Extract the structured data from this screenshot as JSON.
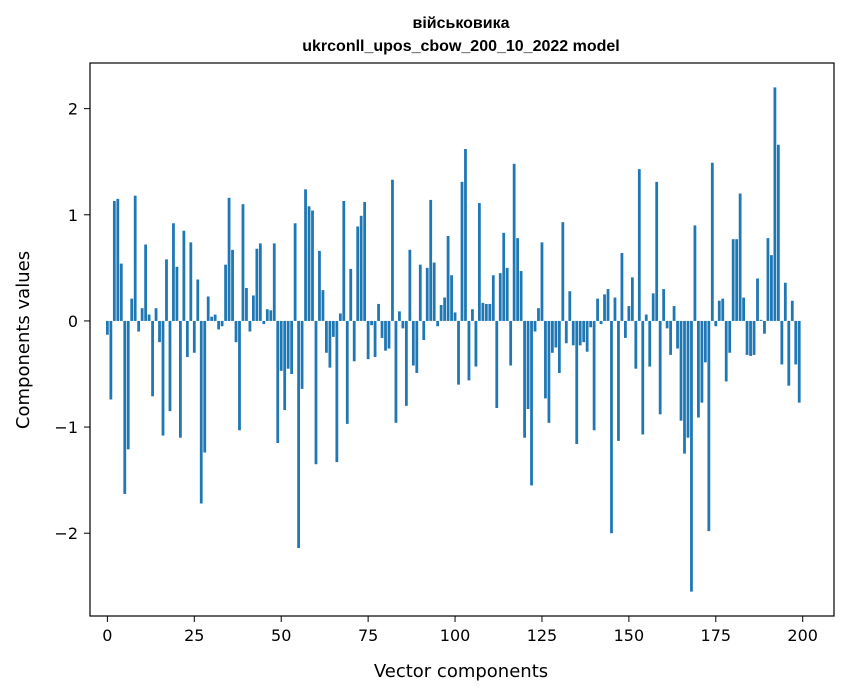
{
  "chart_data": {
    "type": "bar",
    "title": "військовика",
    "subtitle": "ukrconll_upos_cbow_200_10_2022 model",
    "xlabel": "Vector components",
    "ylabel": "Components values",
    "xlim": [
      -5,
      209
    ],
    "ylim": [
      -2.78,
      2.43
    ],
    "xticks": [
      0,
      25,
      50,
      75,
      100,
      125,
      150,
      175,
      200
    ],
    "yticks": [
      -2,
      -1,
      0,
      1,
      2
    ],
    "ytick_labels": [
      "−2",
      "−1",
      "0",
      "1",
      "2"
    ],
    "grid": false,
    "bar_color": "#1f77b4",
    "values": [
      -0.13,
      -0.74,
      1.13,
      1.15,
      0.54,
      -1.63,
      -1.21,
      0.21,
      1.18,
      -0.1,
      0.12,
      0.72,
      0.06,
      -0.71,
      0.12,
      -0.2,
      -1.08,
      0.58,
      -0.85,
      0.92,
      0.51,
      -1.1,
      0.85,
      -0.34,
      0.74,
      -0.3,
      0.39,
      -1.72,
      -1.24,
      0.23,
      0.04,
      0.06,
      -0.08,
      -0.05,
      0.53,
      1.16,
      0.67,
      -0.2,
      -1.03,
      1.1,
      0.31,
      -0.1,
      0.24,
      0.68,
      0.73,
      -0.03,
      0.11,
      0.1,
      0.73,
      -1.15,
      -0.47,
      -0.84,
      -0.45,
      -0.5,
      0.92,
      -2.14,
      -0.64,
      1.24,
      1.08,
      1.04,
      -1.35,
      0.66,
      0.29,
      -0.3,
      -0.44,
      -0.15,
      -1.33,
      0.07,
      1.13,
      -0.97,
      0.49,
      -0.38,
      0.89,
      0.99,
      1.12,
      -0.36,
      -0.04,
      -0.34,
      0.16,
      -0.16,
      -0.28,
      -0.26,
      1.33,
      -0.96,
      0.09,
      -0.07,
      -0.8,
      0.67,
      -0.42,
      -0.49,
      0.53,
      -0.18,
      0.5,
      1.14,
      0.55,
      -0.05,
      0.15,
      0.22,
      0.8,
      0.43,
      0.08,
      -0.6,
      1.31,
      1.62,
      -0.56,
      0.11,
      -0.43,
      1.11,
      0.17,
      0.16,
      0.16,
      0.43,
      -0.82,
      0.45,
      0.83,
      0.5,
      -0.42,
      1.48,
      0.78,
      0.47,
      -1.1,
      -0.83,
      -1.55,
      -0.1,
      0.12,
      0.74,
      -0.73,
      -0.96,
      -0.3,
      -0.25,
      -0.49,
      0.93,
      -0.21,
      0.28,
      -0.23,
      -1.16,
      -0.23,
      -0.2,
      -0.29,
      -0.06,
      -1.03,
      0.21,
      -0.03,
      0.25,
      0.3,
      -2.0,
      0.22,
      -1.13,
      0.64,
      -0.16,
      0.14,
      0.41,
      -0.45,
      1.43,
      -1.07,
      0.06,
      -0.43,
      0.26,
      1.31,
      -0.88,
      0.3,
      -0.07,
      -0.32,
      0.14,
      -0.26,
      -0.94,
      -1.25,
      -1.1,
      -2.55,
      0.9,
      -0.91,
      -0.77,
      -0.39,
      -1.98,
      1.49,
      -0.05,
      0.19,
      0.21,
      -0.57,
      -0.3,
      0.77,
      0.77,
      1.2,
      0.22,
      -0.32,
      -0.33,
      -0.32,
      0.4,
      0.01,
      -0.12,
      0.78,
      0.62,
      2.2,
      1.66,
      -0.41,
      0.36,
      -0.61,
      0.19,
      -0.41,
      -0.77
    ]
  }
}
